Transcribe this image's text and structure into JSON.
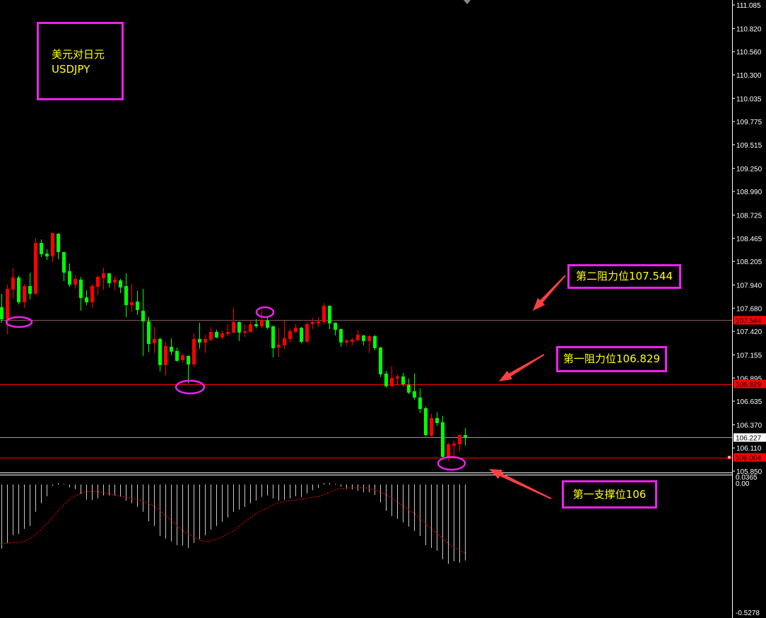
{
  "title_box": {
    "line1": "美元对日元",
    "line2": "USDJPY"
  },
  "annotations": {
    "resistance2": "第二阻力位107.544",
    "resistance1": "第一阻力位106.829",
    "support1": "第一支撑位106"
  },
  "colors": {
    "up": "#ff0000",
    "down": "#00ff00",
    "annotation": "#ee22ee",
    "text": "#ffff00",
    "arrow": "#ff4040",
    "histogram": "#c8c8c8",
    "signal": "#ff0000"
  },
  "chart_data": {
    "type": "candlestick",
    "symbol": "USDJPY",
    "ylim": [
      105.85,
      111.085
    ],
    "y_ticks": [
      "111.085",
      "110.820",
      "110.560",
      "110.300",
      "110.035",
      "109.775",
      "109.515",
      "109.250",
      "108.990",
      "108.725",
      "108.465",
      "108.205",
      "107.940",
      "107.680",
      "107.420",
      "107.155",
      "106.895",
      "106.635",
      "106.370",
      "106.110",
      "105.850"
    ],
    "levels": [
      {
        "label": "107.544",
        "value": 107.544,
        "style": "dim"
      },
      {
        "label": "106.829",
        "value": 106.829,
        "style": "red"
      },
      {
        "label": "106.227",
        "value": 106.227,
        "style": "current"
      },
      {
        "label": "106.004",
        "value": 106.004,
        "style": "red"
      }
    ],
    "ohlc": [
      [
        107.69,
        107.841,
        107.516,
        107.556
      ],
      [
        107.556,
        107.944,
        107.389,
        107.897
      ],
      [
        107.889,
        108.127,
        107.786,
        108.024
      ],
      [
        108.024,
        108.047,
        107.722,
        107.746
      ],
      [
        107.746,
        107.952,
        107.683,
        107.928
      ],
      [
        107.928,
        108.079,
        107.778,
        107.841
      ],
      [
        107.841,
        108.468,
        107.835,
        108.412
      ],
      [
        108.412,
        108.452,
        108.253,
        108.285
      ],
      [
        108.293,
        108.341,
        108.222,
        108.261
      ],
      [
        108.261,
        108.531,
        108.198,
        108.523
      ],
      [
        108.515,
        108.523,
        108.23,
        108.309
      ],
      [
        108.309,
        108.317,
        107.984,
        108.079
      ],
      [
        108.095,
        108.182,
        107.92,
        107.944
      ],
      [
        107.944,
        108.047,
        107.897,
        108.008
      ],
      [
        108.0,
        108.031,
        107.651,
        107.794
      ],
      [
        107.801,
        107.881,
        107.714,
        107.746
      ],
      [
        107.746,
        107.952,
        107.683,
        107.928
      ],
      [
        107.92,
        108.047,
        107.825,
        108.031
      ],
      [
        108.016,
        108.135,
        107.881,
        108.071
      ],
      [
        108.071,
        108.075,
        107.912,
        107.96
      ],
      [
        107.968,
        108.039,
        107.881,
        108.0
      ],
      [
        107.992,
        108.008,
        107.849,
        107.912
      ],
      [
        107.928,
        108.071,
        107.579,
        107.714
      ],
      [
        107.714,
        107.952,
        107.635,
        107.746
      ],
      [
        107.754,
        107.873,
        107.603,
        107.659
      ],
      [
        107.651,
        107.897,
        107.143,
        107.532
      ],
      [
        107.532,
        107.579,
        107.183,
        107.278
      ],
      [
        107.286,
        107.468,
        107.175,
        107.334
      ],
      [
        107.334,
        107.35,
        106.969,
        107.04
      ],
      [
        107.04,
        107.302,
        106.921,
        107.254
      ],
      [
        107.246,
        107.342,
        107.151,
        107.191
      ],
      [
        107.199,
        107.238,
        107.08,
        107.088
      ],
      [
        107.096,
        107.175,
        107.064,
        107.151
      ],
      [
        107.143,
        107.151,
        106.834,
        107.048
      ],
      [
        107.048,
        107.397,
        107.016,
        107.334
      ],
      [
        107.334,
        107.516,
        107.223,
        107.294
      ],
      [
        107.294,
        107.381,
        107.175,
        107.334
      ],
      [
        107.326,
        107.468,
        107.31,
        107.413
      ],
      [
        107.413,
        107.437,
        107.342,
        107.35
      ],
      [
        107.35,
        107.429,
        107.326,
        107.397
      ],
      [
        107.389,
        107.5,
        107.365,
        107.413
      ],
      [
        107.405,
        107.683,
        107.4,
        107.524
      ],
      [
        107.524,
        107.53,
        107.31,
        107.405
      ],
      [
        107.405,
        107.5,
        107.357,
        107.421
      ],
      [
        107.413,
        107.548,
        107.408,
        107.5
      ],
      [
        107.5,
        107.556,
        107.452,
        107.476
      ],
      [
        107.476,
        107.659,
        107.452,
        107.548
      ],
      [
        107.54,
        107.571,
        107.444,
        107.46
      ],
      [
        107.476,
        107.484,
        107.127,
        107.231
      ],
      [
        107.238,
        107.452,
        107.135,
        107.27
      ],
      [
        107.262,
        107.54,
        107.223,
        107.342
      ],
      [
        107.334,
        107.452,
        107.294,
        107.421
      ],
      [
        107.413,
        107.5,
        107.397,
        107.46
      ],
      [
        107.46,
        107.468,
        107.286,
        107.302
      ],
      [
        107.302,
        107.524,
        107.298,
        107.5
      ],
      [
        107.5,
        107.571,
        107.444,
        107.524
      ],
      [
        107.508,
        107.579,
        107.468,
        107.532
      ],
      [
        107.524,
        107.738,
        107.5,
        107.706
      ],
      [
        107.706,
        107.714,
        107.444,
        107.508
      ],
      [
        107.516,
        107.52,
        107.373,
        107.437
      ],
      [
        107.444,
        107.452,
        107.246,
        107.294
      ],
      [
        107.294,
        107.326,
        107.262,
        107.318
      ],
      [
        107.302,
        107.35,
        107.262,
        107.326
      ],
      [
        107.318,
        107.437,
        107.314,
        107.381
      ],
      [
        107.373,
        107.381,
        107.262,
        107.31
      ],
      [
        107.31,
        107.373,
        107.175,
        107.365
      ],
      [
        107.365,
        107.381,
        107.207,
        107.231
      ],
      [
        107.238,
        107.246,
        106.905,
        106.937
      ],
      [
        106.945,
        106.976,
        106.786,
        106.802
      ],
      [
        106.802,
        107.032,
        106.798,
        106.897
      ],
      [
        106.889,
        106.937,
        106.81,
        106.913
      ],
      [
        106.913,
        106.953,
        106.802,
        106.826
      ],
      [
        106.818,
        106.889,
        106.715,
        106.731
      ],
      [
        106.747,
        106.945,
        106.652,
        106.676
      ],
      [
        106.676,
        106.778,
        106.501,
        106.548
      ],
      [
        106.556,
        106.572,
        106.239,
        106.255
      ],
      [
        106.247,
        106.493,
        106.223,
        106.445
      ],
      [
        106.445,
        106.509,
        106.358,
        106.39
      ],
      [
        106.398,
        106.469,
        106.001,
        106.01
      ],
      [
        106.01,
        106.168,
        105.96,
        106.152
      ],
      [
        106.136,
        106.192,
        106.01,
        106.16
      ],
      [
        106.152,
        106.263,
        106.073,
        106.255
      ],
      [
        106.255,
        106.334,
        106.136,
        106.227
      ]
    ],
    "indicator": {
      "ylim": [
        -0.5278,
        0.0365
      ],
      "y_ticks": [
        "0.0365",
        "0.00",
        "-0.5278"
      ],
      "histogram": [
        -0.263,
        -0.242,
        -0.208,
        -0.203,
        -0.182,
        -0.17,
        -0.112,
        -0.077,
        -0.048,
        -0.005,
        0.006,
        0.003,
        -0.012,
        -0.019,
        -0.039,
        -0.062,
        -0.063,
        -0.057,
        -0.045,
        -0.045,
        -0.045,
        -0.05,
        -0.066,
        -0.077,
        -0.092,
        -0.112,
        -0.151,
        -0.17,
        -0.211,
        -0.222,
        -0.234,
        -0.249,
        -0.251,
        -0.26,
        -0.24,
        -0.225,
        -0.208,
        -0.185,
        -0.17,
        -0.153,
        -0.135,
        -0.112,
        -0.103,
        -0.092,
        -0.077,
        -0.066,
        -0.051,
        -0.045,
        -0.057,
        -0.066,
        -0.063,
        -0.057,
        -0.048,
        -0.051,
        -0.037,
        -0.024,
        -0.014,
        0.006,
        0.007,
        0.003,
        -0.008,
        -0.019,
        -0.021,
        -0.025,
        -0.031,
        -0.031,
        -0.043,
        -0.074,
        -0.108,
        -0.13,
        -0.141,
        -0.156,
        -0.173,
        -0.191,
        -0.211,
        -0.249,
        -0.26,
        -0.272,
        -0.307,
        -0.326,
        -0.315,
        -0.321,
        -0.312
      ],
      "signal": [
        -0.244,
        -0.24,
        -0.239,
        -0.238,
        -0.234,
        -0.224,
        -0.207,
        -0.186,
        -0.162,
        -0.137,
        -0.11,
        -0.084,
        -0.062,
        -0.047,
        -0.036,
        -0.029,
        -0.027,
        -0.029,
        -0.033,
        -0.038,
        -0.044,
        -0.048,
        -0.052,
        -0.057,
        -0.062,
        -0.067,
        -0.076,
        -0.089,
        -0.106,
        -0.128,
        -0.147,
        -0.168,
        -0.188,
        -0.203,
        -0.215,
        -0.229,
        -0.234,
        -0.232,
        -0.226,
        -0.215,
        -0.203,
        -0.191,
        -0.174,
        -0.155,
        -0.137,
        -0.12,
        -0.108,
        -0.097,
        -0.084,
        -0.075,
        -0.07,
        -0.067,
        -0.065,
        -0.06,
        -0.057,
        -0.053,
        -0.05,
        -0.043,
        -0.033,
        -0.023,
        -0.017,
        -0.015,
        -0.014,
        -0.014,
        -0.014,
        -0.015,
        -0.021,
        -0.031,
        -0.043,
        -0.055,
        -0.072,
        -0.087,
        -0.101,
        -0.118,
        -0.139,
        -0.159,
        -0.182,
        -0.2,
        -0.22,
        -0.24,
        -0.258,
        -0.268,
        -0.282
      ]
    }
  }
}
